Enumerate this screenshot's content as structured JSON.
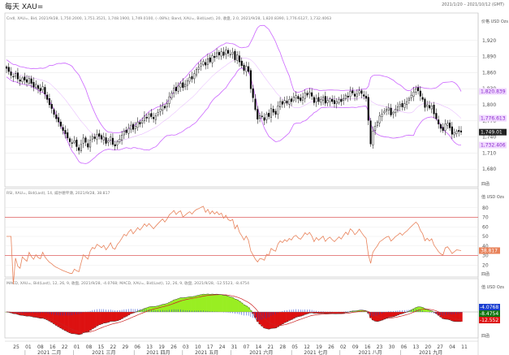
{
  "app": {
    "title": "每天 XAU=",
    "date_range": "2021/1/20 – 2021/10/12 (GMT)",
    "colors": {
      "background": "#ffffff",
      "candle": "#000000",
      "bollinger": "#cc66ff",
      "rsi": "#e8825a",
      "rsi_bands": "#e06060",
      "macd_hist_pos": "#99ee22",
      "macd_hist_neg": "#dd1111",
      "macd_line": "#1a3fd0",
      "signal_line": "#cc2222",
      "grid": "#e6e6e6"
    }
  },
  "chart_data": [
    {
      "type": "candlestick",
      "info": "Cndl, XAU=, Bid, 2021/9/28, 1,750.2000, 1,751.3521, 1,748.1900, 1,749.0100, (-.08%); Band, XAU=, Bid(Last), 20, 收盘, 2.0, 2021/9/28, 1,820.8390, 1,776.6127, 1,732.4063",
      "y_unit": "价格 USD Ozs",
      "ylim": [
        1650,
        1950
      ],
      "yticks": [
        1680,
        1710,
        1740,
        1770,
        1800,
        1830,
        1860,
        1890,
        1920
      ],
      "ytick_labels": [
        "1,680",
        "1,710",
        "1,740",
        "1,770",
        "1,800",
        "1,830",
        "1,860",
        "1,890",
        "1,920"
      ],
      "last_labels": {
        "upper": "1,820.839",
        "mid": "1,776.613",
        "last": "1,749.01",
        "lower": "1,732.406"
      },
      "close": [
        1868,
        1862,
        1855,
        1852,
        1858,
        1848,
        1844,
        1850,
        1846,
        1842,
        1849,
        1840,
        1833,
        1838,
        1830,
        1826,
        1834,
        1820,
        1810,
        1800,
        1793,
        1782,
        1774,
        1768,
        1760,
        1752,
        1746,
        1738,
        1731,
        1728,
        1733,
        1722,
        1715,
        1726,
        1738,
        1730,
        1721,
        1734,
        1741,
        1737,
        1745,
        1741,
        1736,
        1740,
        1728,
        1733,
        1740,
        1726,
        1723,
        1731,
        1736,
        1743,
        1751,
        1748,
        1756,
        1762,
        1754,
        1760,
        1768,
        1764,
        1770,
        1779,
        1775,
        1782,
        1778,
        1774,
        1780,
        1786,
        1792,
        1798,
        1794,
        1802,
        1815,
        1822,
        1831,
        1826,
        1835,
        1840,
        1832,
        1838,
        1845,
        1851,
        1848,
        1858,
        1866,
        1870,
        1876,
        1881,
        1874,
        1886,
        1880,
        1892,
        1888,
        1897,
        1893,
        1899,
        1892,
        1902,
        1896,
        1894,
        1898,
        1884,
        1893,
        1880,
        1873,
        1864,
        1872,
        1862,
        1830,
        1813,
        1791,
        1773,
        1780,
        1778,
        1771,
        1783,
        1778,
        1793,
        1786,
        1782,
        1798,
        1806,
        1801,
        1808,
        1803,
        1810,
        1806,
        1814,
        1817,
        1811,
        1808,
        1814,
        1822,
        1818,
        1823,
        1816,
        1804,
        1812,
        1806,
        1810,
        1814,
        1803,
        1808,
        1811,
        1806,
        1802,
        1806,
        1810,
        1806,
        1812,
        1818,
        1814,
        1825,
        1822,
        1816,
        1820,
        1826,
        1821,
        1816,
        1812,
        1771,
        1727,
        1751,
        1760,
        1768,
        1779,
        1783,
        1788,
        1792,
        1794,
        1781,
        1786,
        1792,
        1796,
        1801,
        1796,
        1802,
        1806,
        1812,
        1818,
        1824,
        1830,
        1826,
        1816,
        1810,
        1795,
        1800,
        1794,
        1798,
        1783,
        1774,
        1764,
        1756,
        1752,
        1764,
        1766,
        1757,
        1745,
        1748,
        1751,
        1750,
        1749
      ]
    },
    {
      "type": "line",
      "name": "RSI",
      "info": "RSI, XAU=, Bid(Last), 14, 威尔德平滑, 2021/9/28, 38.817",
      "y_unit": "值 USD Ozs",
      "ylim": [
        10,
        90
      ],
      "yticks": [
        20,
        30,
        40,
        50,
        60,
        70,
        80
      ],
      "bands": [
        30,
        70
      ],
      "last_label": "38.817"
    },
    {
      "type": "bar",
      "name": "MACD",
      "info": "MACD, XAU=, Bid(Last), 12, 26, 9, 收盘, 2021/9/28, -4.0768; MACD, XAU=, Bid(Last), 12, 26, 9, 收盘, 2021/9/28, -12.5523, -8.4754",
      "y_unit": "值 USD Ozs",
      "last_labels": [
        "-4.0768",
        "-8.4754",
        "-12.552"
      ],
      "note": "MACD line, signal line and histogram derived from the close series (12, 26, 9)"
    }
  ],
  "x_axis": {
    "ticks": [
      "25",
      "01",
      "08",
      "16",
      "22",
      "01",
      "08",
      "15",
      "22",
      "29",
      "06",
      "13",
      "19",
      "26",
      "03",
      "10",
      "17",
      "24",
      "31",
      "07",
      "14",
      "21",
      "28",
      "05",
      "12",
      "19",
      "26",
      "02",
      "09",
      "16",
      "23",
      "30",
      "06",
      "13",
      "20",
      "27",
      "04",
      "11"
    ],
    "months": [
      "2021 二月",
      "2021 三月",
      "2021 四月",
      "2021 五月",
      "2021 六月",
      "2021 七月",
      "2021 八月",
      "2021 九月"
    ]
  },
  "panel_tags": [
    "四函",
    "四函",
    "四函"
  ]
}
